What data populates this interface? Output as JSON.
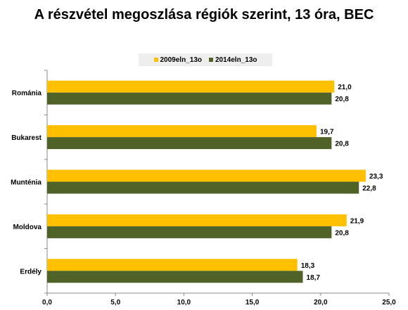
{
  "chart_data": {
    "type": "bar",
    "orientation": "horizontal",
    "title": "A részvétel megoszlása régiók szerint, 13 óra, BEC",
    "categories": [
      "Románia",
      "Bukarest",
      "Munténia",
      "Moldova",
      "Erdély"
    ],
    "series": [
      {
        "name": "2009eln_13o",
        "color": "#ffc000",
        "values": [
          21.0,
          19.7,
          23.3,
          21.9,
          18.3
        ],
        "labels": [
          "21,0",
          "19,7",
          "23,3",
          "21,9",
          "18,3"
        ]
      },
      {
        "name": "2014eln_13o",
        "color": "#4f6228",
        "values": [
          20.8,
          20.8,
          22.8,
          20.8,
          18.7
        ],
        "labels": [
          "20,8",
          "20,8",
          "22,8",
          "20,8",
          "18,7"
        ]
      }
    ],
    "xlim": [
      0,
      25
    ],
    "ticks": [
      0,
      5,
      10,
      15,
      20,
      25
    ],
    "tick_labels": [
      "0,0",
      "5,0",
      "10,0",
      "15,0",
      "20,0",
      "25,0"
    ],
    "grid": false,
    "legend_position": "top"
  }
}
